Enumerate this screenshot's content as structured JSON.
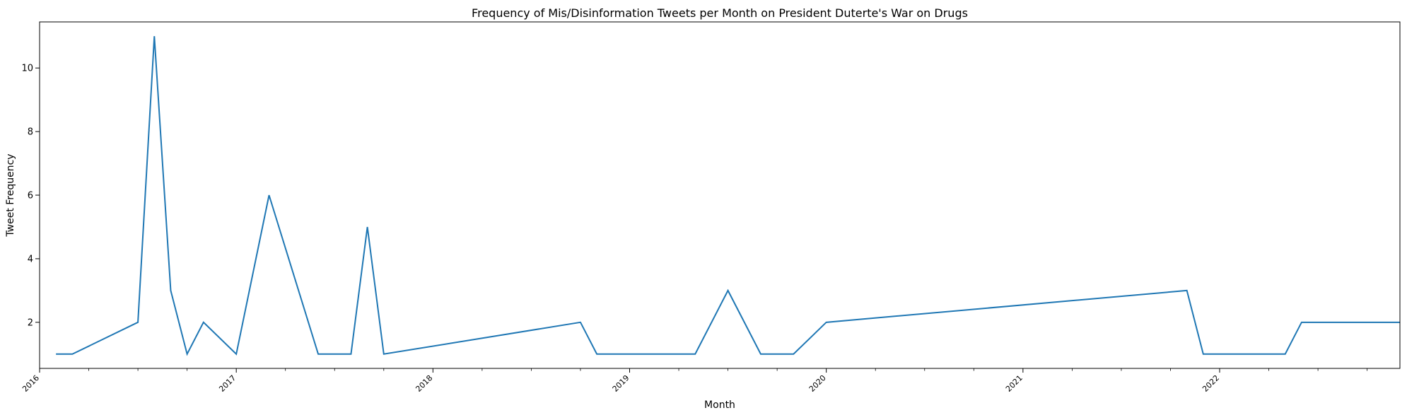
{
  "chart_data": {
    "type": "line",
    "title": "Frequency of Mis/Disinformation Tweets per Month on President Duterte's War on Drugs",
    "xlabel": "Month",
    "ylabel": "Tweet Frequency",
    "xlim": [
      "2016-01",
      "2022-12"
    ],
    "ylim": [
      0.55,
      11.45
    ],
    "x_ticks": [
      "2016",
      "2017",
      "2018",
      "2019",
      "2020",
      "2021",
      "2022"
    ],
    "y_ticks": [
      "2",
      "4",
      "6",
      "8",
      "10"
    ],
    "grid": false,
    "line_color": "#1f77b4",
    "series": [
      {
        "x": [
          "2016-02",
          "2016-03",
          "2016-07",
          "2016-08",
          "2016-09",
          "2016-10",
          "2016-11",
          "2017-01",
          "2017-03",
          "2017-06",
          "2017-08",
          "2017-09",
          "2017-10",
          "2018-10",
          "2018-11",
          "2019-05",
          "2019-07",
          "2019-09",
          "2019-11",
          "2020-01",
          "2021-11",
          "2021-12",
          "2022-05",
          "2022-06",
          "2022-12"
        ],
        "values": [
          1,
          1,
          2,
          11,
          3,
          1,
          2,
          1,
          6,
          1,
          1,
          5,
          1,
          2,
          1,
          1,
          3,
          1,
          1,
          2,
          3,
          1,
          1,
          2,
          2
        ]
      }
    ]
  }
}
